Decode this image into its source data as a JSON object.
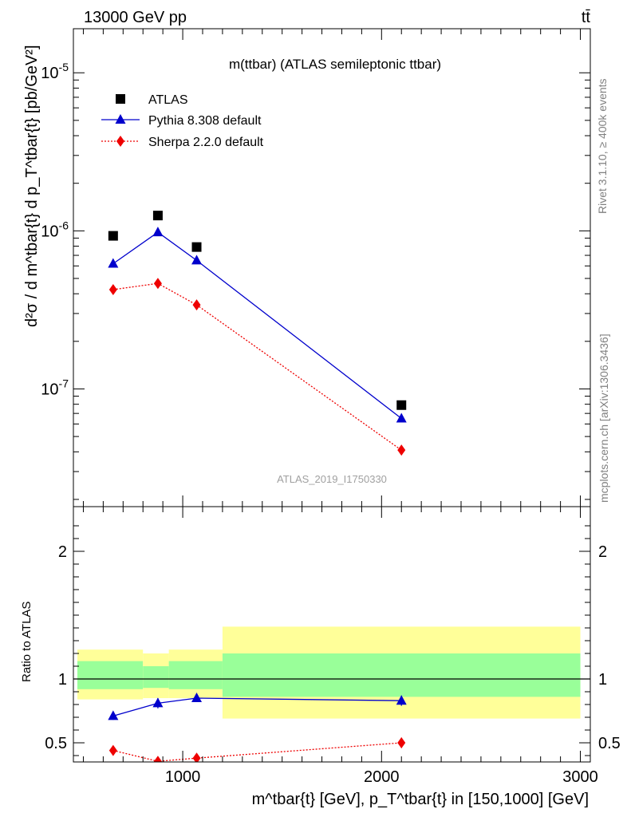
{
  "header": {
    "energy_label": "13000 GeV pp",
    "process_label": "tt̄"
  },
  "side_labels": {
    "rivet": "Rivet 3.1.10, ≥ 400k events",
    "source": "mcplots.cern.ch [arXiv:1306.3436]"
  },
  "chart_data": [
    {
      "type": "scatter",
      "title": "m(ttbar) (ATLAS semileptonic ttbar)",
      "watermark": "ATLAS_2019_I1750330",
      "ylabel": "d²σ / d m^tbar{t} d p_T^tbar{t} [pb/GeV²]",
      "yscale": "log",
      "ylim": [
        1.8e-08,
        1.9e-05
      ],
      "xlim": [
        450,
        3050
      ],
      "y_tick_labels": [
        "10^-7",
        "10^-6",
        "10^-5"
      ],
      "legend_position": "top-left",
      "x": [
        650,
        875,
        1070,
        2100
      ],
      "series": [
        {
          "name": "ATLAS",
          "color": "#000000",
          "marker": "square",
          "line": "none",
          "values": [
            9.3e-07,
            1.25e-06,
            7.9e-07,
            7.9e-08
          ]
        },
        {
          "name": "Pythia 8.308 default",
          "color": "#0000cc",
          "marker": "triangle",
          "line": "solid",
          "values": [
            6.2e-07,
            9.8e-07,
            6.5e-07,
            6.5e-08
          ]
        },
        {
          "name": "Sherpa 2.2.0 default",
          "color": "#ee0000",
          "marker": "diamond",
          "line": "dotted",
          "values": [
            4.25e-07,
            4.65e-07,
            3.4e-07,
            4.1e-08
          ]
        }
      ]
    },
    {
      "type": "scatter",
      "ylabel": "Ratio to ATLAS",
      "xlabel": "m^tbar{t} [GeV], p_T^tbar{t} in [150,1000] [GeV]",
      "ylim": [
        0.35,
        2.35
      ],
      "xlim": [
        450,
        3050
      ],
      "y_tick_labels": [
        "0.5",
        "1",
        "2"
      ],
      "x_tick_labels": [
        "1000",
        "2000",
        "3000"
      ],
      "x": [
        650,
        875,
        1070,
        2100
      ],
      "reference_line": 1,
      "bands": [
        {
          "x_from": 470,
          "x_to": 800,
          "yellow": [
            0.84,
            1.23
          ],
          "green": [
            0.92,
            1.14
          ]
        },
        {
          "x_from": 800,
          "x_to": 930,
          "yellow": [
            0.85,
            1.2
          ],
          "green": [
            0.93,
            1.1
          ]
        },
        {
          "x_from": 930,
          "x_to": 1200,
          "yellow": [
            0.85,
            1.23
          ],
          "green": [
            0.92,
            1.14
          ]
        },
        {
          "x_from": 1200,
          "x_to": 3000,
          "yellow": [
            0.69,
            1.41
          ],
          "green": [
            0.86,
            1.2
          ]
        }
      ],
      "series": [
        {
          "name": "Pythia 8.308 default",
          "color": "#0000cc",
          "values": [
            0.71,
            0.81,
            0.85,
            0.83
          ],
          "errors": [
            0.03,
            0.04,
            0.03,
            0.04
          ]
        },
        {
          "name": "Sherpa 2.2.0 default",
          "color": "#ee0000",
          "values": [
            0.44,
            0.355,
            0.38,
            0.5
          ],
          "errors": [
            0.03,
            0.02,
            0.03,
            0.04
          ]
        }
      ]
    }
  ]
}
